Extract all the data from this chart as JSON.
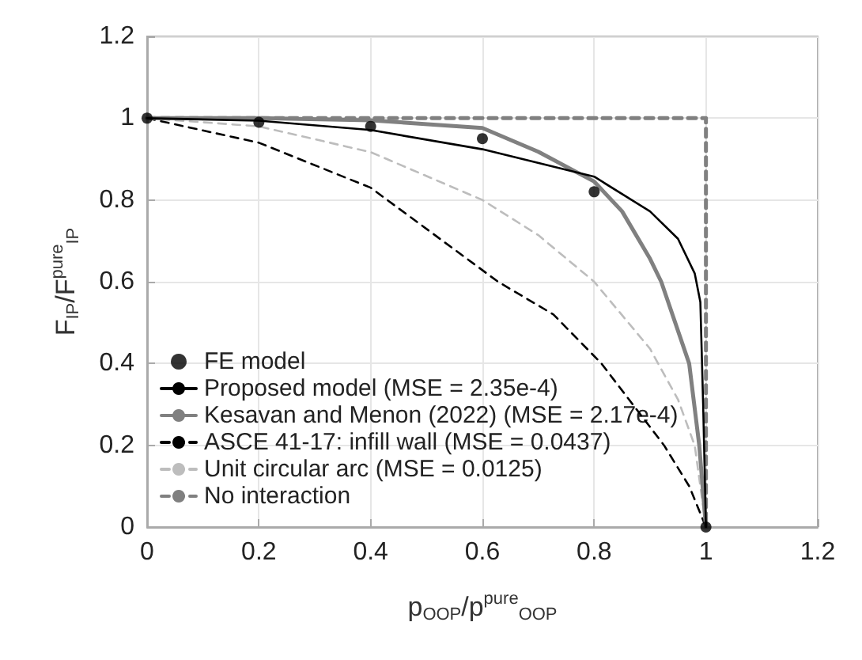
{
  "chart_data": {
    "type": "line",
    "xlabel": "p$_{OOP}$/p$^{pure}$$_{OOP}$",
    "ylabel": "F$_{IP}$/F$^{pure}$$_{IP}$",
    "xlim": [
      0,
      1.2
    ],
    "ylim": [
      0,
      1.2
    ],
    "xticks": [
      0,
      0.2,
      0.4,
      0.6,
      0.8,
      1,
      1.2
    ],
    "yticks": [
      0,
      0.2,
      0.4,
      0.6,
      0.8,
      1,
      1.2
    ],
    "grid": true,
    "legend": "bottom left",
    "series": [
      {
        "name": "FE model",
        "type": "scatter",
        "marker": "circle",
        "color": "#000000",
        "x": [
          0,
          0.2,
          0.4,
          0.6,
          0.8,
          1
        ],
        "values": [
          1,
          0.99,
          0.98,
          0.95,
          0.82,
          0
        ]
      },
      {
        "name": "Proposed model (MSE = 2.35e-4)",
        "color": "#000000",
        "line_style": "solid",
        "marker": "none",
        "x": [
          0,
          0.2,
          0.4,
          0.6,
          0.8,
          0.9,
          0.95,
          0.98,
          0.99,
          0.995,
          1
        ],
        "values": [
          1,
          0.994,
          0.971,
          0.924,
          0.857,
          0.772,
          0.705,
          0.62,
          0.55,
          0.3,
          0
        ]
      },
      {
        "name": "Kesavan and Menon (2022) (MSE = 2.17e-4)",
        "color": "#808080",
        "line_style": "solid",
        "marker": "none",
        "x": [
          0,
          0.2,
          0.4,
          0.6,
          0.7,
          0.8,
          0.85,
          0.9,
          0.92,
          0.97,
          0.988,
          1
        ],
        "values": [
          1,
          1,
          0.995,
          0.976,
          0.918,
          0.845,
          0.772,
          0.656,
          0.6,
          0.4,
          0.2,
          0
        ]
      },
      {
        "name": "ASCE 41-17: infill wall (MSE = 0.0437)",
        "color": "#000000",
        "line_style": "dashed",
        "marker": "none",
        "x": [
          0,
          0.2,
          0.4,
          0.628,
          0.727,
          0.813,
          0.925,
          0.97,
          1
        ],
        "values": [
          1,
          0.94,
          0.83,
          0.6,
          0.52,
          0.4,
          0.2,
          0.1,
          0
        ]
      },
      {
        "name": "Unit circular arc (MSE = 0.0125)",
        "color": "#bdbdbd",
        "line_style": "dashed",
        "marker": "none",
        "x": [
          0,
          0.2,
          0.4,
          0.6,
          0.7,
          0.8,
          0.9,
          0.95,
          0.98,
          1
        ],
        "values": [
          1,
          0.98,
          0.917,
          0.8,
          0.714,
          0.6,
          0.436,
          0.312,
          0.199,
          0
        ]
      },
      {
        "name": "No interaction",
        "color": "#808080",
        "line_style": "dashed",
        "marker": "none",
        "x": [
          0,
          1,
          1
        ],
        "values": [
          1,
          1,
          0
        ]
      }
    ]
  }
}
